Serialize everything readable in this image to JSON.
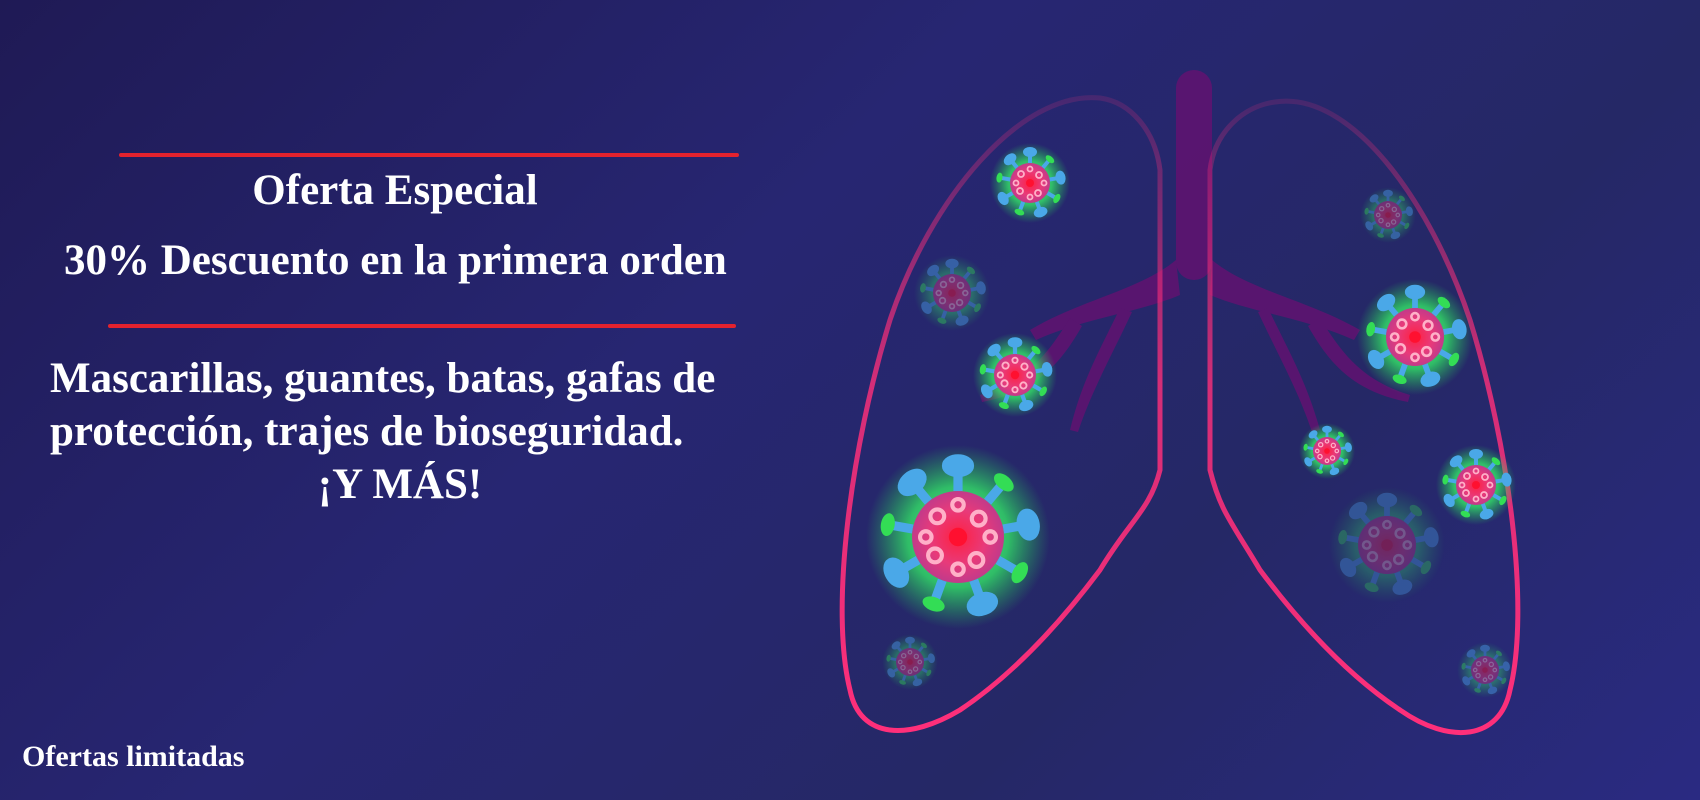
{
  "banner": {
    "title": "Oferta Especial",
    "discount": "30% Descuento en la primera orden",
    "products": {
      "line1": "Mascarillas, guantes, batas, gafas de",
      "line2": "protección, trajes de bioseguridad.",
      "line3": "¡Y MÁS!"
    },
    "footer_note": "Ofertas limitadas"
  },
  "colors": {
    "background": "#252468",
    "accent_rule": "#e3222e",
    "lung_outline": "#ff2f7a",
    "trachea": "#5e1470",
    "virus_glow": "#33ff77",
    "virus_spikes": "#4aa8e8",
    "virus_core": "#e02050"
  },
  "icons": [
    "lungs-illustration",
    "virus-icon"
  ]
}
